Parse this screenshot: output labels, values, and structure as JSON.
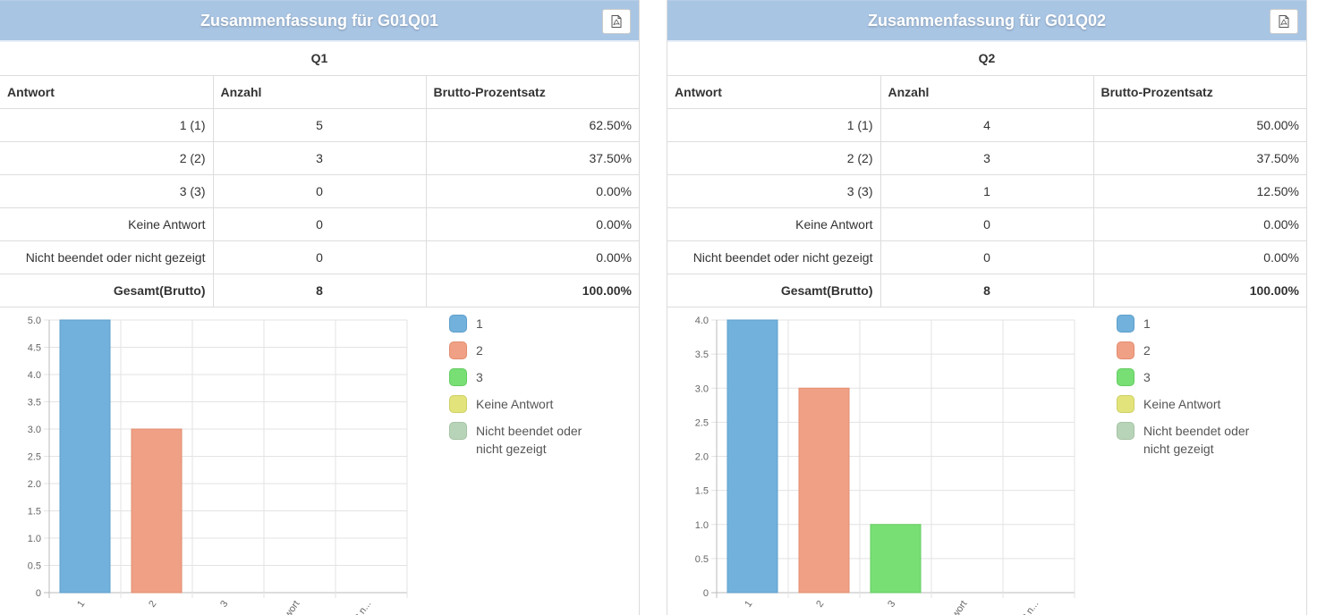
{
  "colors": {
    "header_bg": "#a9c5e4",
    "series": [
      "#71b1dc",
      "#f0a084",
      "#78df75",
      "#e2e37a",
      "#b8d4b8"
    ],
    "series_border": [
      "#5e9fcb",
      "#e28d70",
      "#64cc61",
      "#cfd066",
      "#a5c3a5"
    ]
  },
  "icons": {
    "pdf": "file-pdf-icon"
  },
  "panels": [
    {
      "title": "Zusammenfassung für G01Q01",
      "question": "Q1",
      "headers": {
        "answer": "Antwort",
        "count": "Anzahl",
        "percent": "Brutto-Prozentsatz"
      },
      "rows": [
        {
          "answer": "1 (1)",
          "count": "5",
          "percent": "62.50%"
        },
        {
          "answer": "2 (2)",
          "count": "3",
          "percent": "37.50%"
        },
        {
          "answer": "3 (3)",
          "count": "0",
          "percent": "0.00%"
        },
        {
          "answer": "Keine Antwort",
          "count": "0",
          "percent": "0.00%"
        },
        {
          "answer": "Nicht beendet oder nicht gezeigt",
          "count": "0",
          "percent": "0.00%"
        }
      ],
      "total": {
        "answer": "Gesamt(Brutto)",
        "count": "8",
        "percent": "100.00%"
      },
      "legend": [
        "1",
        "2",
        "3",
        "Keine Antwort",
        "Nicht beendet oder nicht gezeigt"
      ]
    },
    {
      "title": "Zusammenfassung für G01Q02",
      "question": "Q2",
      "headers": {
        "answer": "Antwort",
        "count": "Anzahl",
        "percent": "Brutto-Prozentsatz"
      },
      "rows": [
        {
          "answer": "1 (1)",
          "count": "4",
          "percent": "50.00%"
        },
        {
          "answer": "2 (2)",
          "count": "3",
          "percent": "37.50%"
        },
        {
          "answer": "3 (3)",
          "count": "1",
          "percent": "12.50%"
        },
        {
          "answer": "Keine Antwort",
          "count": "0",
          "percent": "0.00%"
        },
        {
          "answer": "Nicht beendet oder nicht gezeigt",
          "count": "0",
          "percent": "0.00%"
        }
      ],
      "total": {
        "answer": "Gesamt(Brutto)",
        "count": "8",
        "percent": "100.00%"
      },
      "legend": [
        "1",
        "2",
        "3",
        "Keine Antwort",
        "Nicht beendet oder nicht gezeigt"
      ]
    }
  ],
  "chart_data": [
    {
      "type": "bar",
      "categories": [
        "1",
        "2",
        "3",
        "Keine Antwort",
        "Nicht beendet oder nicht gezeigt"
      ],
      "tick_labels": [
        "1",
        "2",
        "3",
        "...ntwort",
        "...ht n..."
      ],
      "values": [
        5,
        3,
        0,
        0,
        0
      ],
      "ylim": [
        0,
        5
      ],
      "yticks": [
        "0",
        "0.5",
        "1.0",
        "1.5",
        "2.0",
        "2.5",
        "3.0",
        "3.5",
        "4.0",
        "4.5",
        "5.0"
      ],
      "ytick_values": [
        0,
        0.5,
        1,
        1.5,
        2,
        2.5,
        3,
        3.5,
        4,
        4.5,
        5
      ],
      "grid": true,
      "legend_position": "right"
    },
    {
      "type": "bar",
      "categories": [
        "1",
        "2",
        "3",
        "Keine Antwort",
        "Nicht beendet oder nicht gezeigt"
      ],
      "tick_labels": [
        "1",
        "2",
        "3",
        "...ntwort",
        "...ht n..."
      ],
      "values": [
        4,
        3,
        1,
        0,
        0
      ],
      "ylim": [
        0,
        4
      ],
      "yticks": [
        "0",
        "0.5",
        "1.0",
        "1.5",
        "2.0",
        "2.5",
        "3.0",
        "3.5",
        "4.0"
      ],
      "ytick_values": [
        0,
        0.5,
        1,
        1.5,
        2,
        2.5,
        3,
        3.5,
        4
      ],
      "grid": true,
      "legend_position": "right"
    }
  ]
}
